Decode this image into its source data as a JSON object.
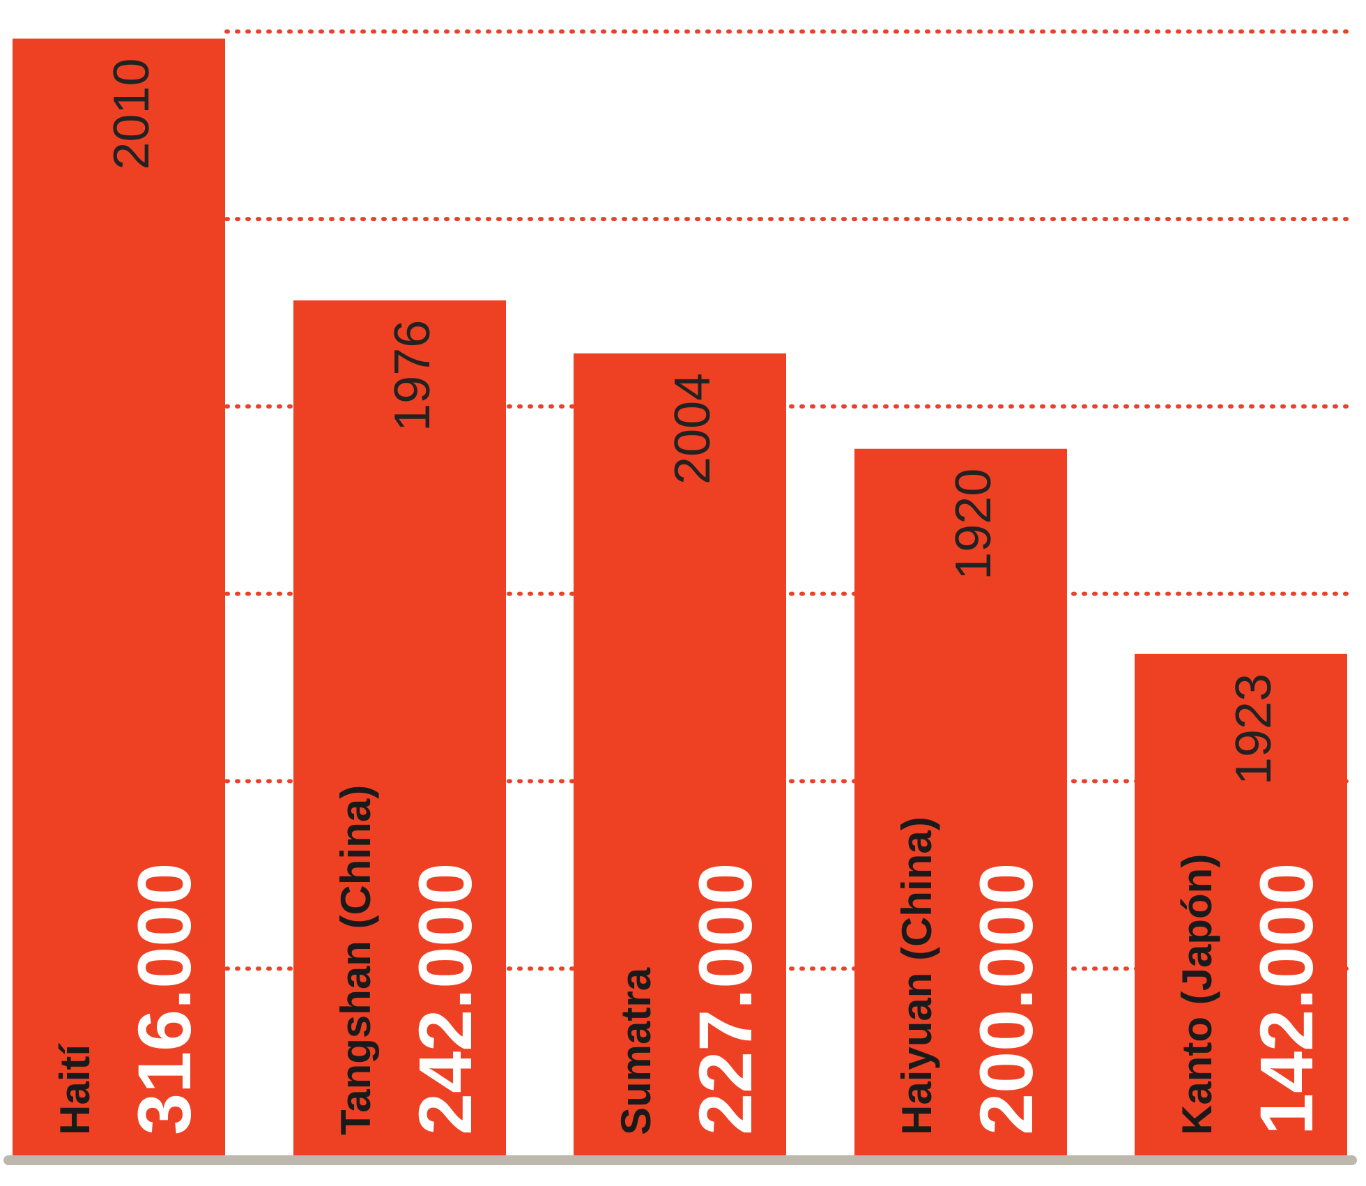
{
  "chart_data": {
    "type": "bar",
    "orientation": "vertical",
    "title": "",
    "xlabel": "",
    "ylabel": "",
    "categories": [
      "Haití",
      "Tangshan (China)",
      "Sumatra",
      "Haiyuan (China)",
      "Kanto (Japón)"
    ],
    "years": [
      "2010",
      "1976",
      "2004",
      "1920",
      "1923"
    ],
    "value_labels": [
      "316.000",
      "242.000",
      "227.000",
      "200.000",
      "142.000"
    ],
    "values": [
      316000,
      242000,
      227000,
      200000,
      142000
    ],
    "ylim": [
      0,
      322000
    ],
    "gridlines": [
      53000,
      106000,
      159000,
      212000,
      265000,
      318000
    ],
    "grid": "dotted horizontal lines",
    "legend": "none",
    "colors": {
      "bar": "#EE4124",
      "grid": "#E8432A",
      "baseline": "#BDB7AE",
      "value_text": "#ffffff",
      "label_text": "#1a1a1a",
      "year_text": "#222222"
    }
  }
}
